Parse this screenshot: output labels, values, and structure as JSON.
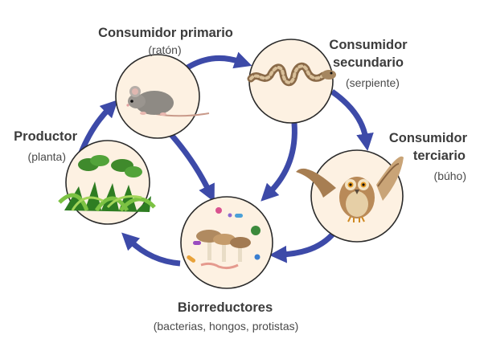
{
  "nodes": {
    "primario": {
      "title": "Consumidor primario",
      "subtitle": "(ratón)",
      "icon": "mouse-icon"
    },
    "secundario": {
      "title_line1": "Consumidor",
      "title_line2": "secundario",
      "subtitle": "(serpiente)",
      "icon": "snake-icon"
    },
    "terciario": {
      "title_line1": "Consumidor",
      "title_line2": "terciario",
      "subtitle": "(búho)",
      "icon": "owl-icon"
    },
    "productor": {
      "title": "Productor",
      "subtitle": "(planta)",
      "icon": "plant-icon"
    },
    "biorreductores": {
      "title": "Biorreductores",
      "subtitle": "(bacterias, hongos, protistas)",
      "icon": "mushroom-icon"
    }
  },
  "colors": {
    "arrow": "#3d4aa8",
    "circle_fill": "#fdf1e2",
    "circle_stroke": "#2b2b2b",
    "text": "#3c3c3c"
  }
}
